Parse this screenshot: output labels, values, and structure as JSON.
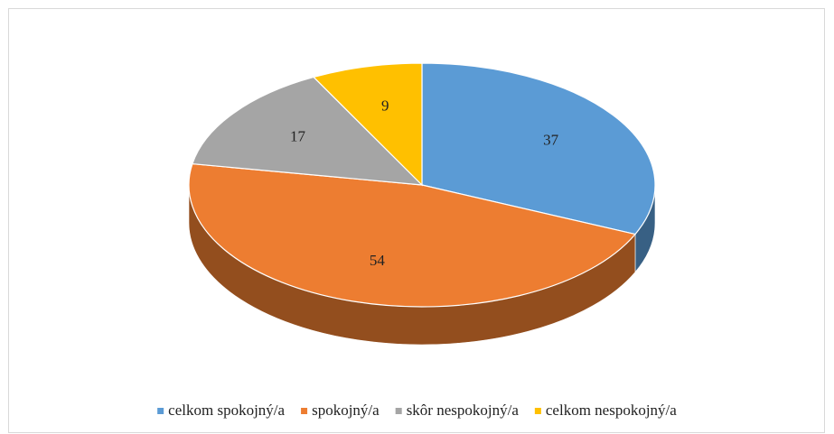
{
  "chart_data": {
    "type": "pie",
    "categories": [
      "celkom spokojný/a",
      "spokojný/a",
      "skôr nespokojný/a",
      "celkom nespokojný/a"
    ],
    "values": [
      37,
      54,
      17,
      9
    ],
    "colors": [
      "#5b9bd5",
      "#ed7d31",
      "#a5a5a5",
      "#ffc000"
    ],
    "legend": "bottom"
  }
}
